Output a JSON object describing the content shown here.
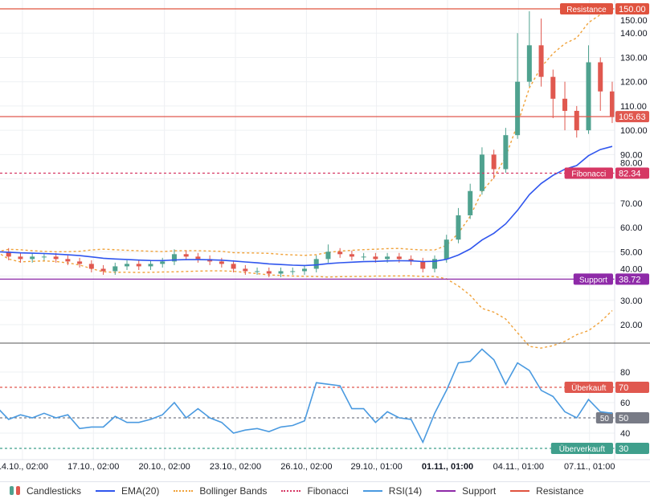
{
  "chart_data": [
    {
      "type": "candlestick",
      "title": "",
      "candles_ohlc": [
        [
          51,
          52,
          49,
          50
        ],
        [
          50,
          51.5,
          46.5,
          48
        ],
        [
          48,
          49.5,
          45.5,
          47
        ],
        [
          47,
          49.5,
          45.5,
          48
        ],
        [
          48,
          49.5,
          46.5,
          48
        ],
        [
          48,
          49.5,
          45.5,
          47
        ],
        [
          47,
          48.5,
          44.5,
          46
        ],
        [
          46,
          47.5,
          43.5,
          45
        ],
        [
          45,
          46.5,
          41.5,
          43
        ],
        [
          43,
          44.5,
          40.5,
          42
        ],
        [
          42,
          45.5,
          40.5,
          44
        ],
        [
          44,
          46.5,
          42.5,
          45
        ],
        [
          45,
          46.5,
          42.5,
          44
        ],
        [
          44,
          46.5,
          42.5,
          45
        ],
        [
          45,
          47.5,
          43.5,
          46
        ],
        [
          46,
          51,
          44.5,
          49
        ],
        [
          49,
          50.5,
          46.5,
          48
        ],
        [
          48,
          49.5,
          45.5,
          47
        ],
        [
          47,
          48.5,
          44.5,
          46
        ],
        [
          46,
          47.5,
          43.5,
          45
        ],
        [
          45,
          46.5,
          41.5,
          43
        ],
        [
          43,
          44.5,
          40.5,
          42
        ],
        [
          42,
          43.5,
          40.5,
          42
        ],
        [
          42,
          43.5,
          39.5,
          41
        ],
        [
          41,
          43.5,
          39.5,
          42
        ],
        [
          42,
          43.5,
          40.5,
          42
        ],
        [
          42,
          44.5,
          40.5,
          43
        ],
        [
          43,
          48.5,
          41.5,
          47
        ],
        [
          47,
          53,
          45.5,
          50
        ],
        [
          50,
          51.5,
          47.5,
          49
        ],
        [
          49,
          50.5,
          46.5,
          48
        ],
        [
          48,
          49.5,
          46.5,
          48
        ],
        [
          48,
          49.5,
          45.5,
          47
        ],
        [
          47,
          49.5,
          45.5,
          48
        ],
        [
          48,
          49.5,
          45.5,
          47
        ],
        [
          47,
          48.5,
          44.5,
          46
        ],
        [
          46,
          47.5,
          41.5,
          43
        ],
        [
          43,
          48.5,
          41.5,
          47
        ],
        [
          47,
          57,
          45.5,
          55
        ],
        [
          55,
          68,
          53.5,
          65
        ],
        [
          65,
          78,
          63.5,
          75
        ],
        [
          75,
          93,
          73.5,
          90
        ],
        [
          90,
          92,
          80,
          84
        ],
        [
          84,
          101,
          82.5,
          98
        ],
        [
          98,
          140,
          96.5,
          120
        ],
        [
          120,
          149,
          118,
          135
        ],
        [
          135,
          146,
          118,
          122
        ],
        [
          122,
          125,
          105,
          113
        ],
        [
          113,
          120,
          100,
          108
        ],
        [
          108,
          110,
          97,
          100
        ],
        [
          100,
          135,
          98.5,
          128
        ],
        [
          128,
          130,
          108,
          116
        ],
        [
          116,
          120,
          103,
          105.63
        ]
      ],
      "y_ticks": [
        "150.00",
        "140.00",
        "130.00",
        "120.00",
        "110.00",
        "100.00",
        "90.00",
        "80.00",
        "70.00",
        "60.00",
        "50.00",
        "40.00",
        "30.00",
        "20.00"
      ],
      "ylim": [
        12,
        153
      ],
      "last_price": "105.63",
      "ema_period": 20,
      "bollinger_period": 20,
      "levels": [
        {
          "name": "Resistance",
          "value": "150.00",
          "color": "#e0533f",
          "style": "solid"
        },
        {
          "name": "Fibonacci",
          "value": "82.34",
          "color": "#d63864",
          "style": "dashed"
        },
        {
          "name": "Support",
          "value": "38.72",
          "color": "#8e2aa8",
          "style": "solid"
        }
      ],
      "colors": {
        "up": "#4fa28f",
        "down": "#e0584f",
        "ema": "#3056ee",
        "bollinger": "#f0a23a"
      },
      "grid": true
    },
    {
      "type": "line",
      "title": "",
      "series": [
        {
          "name": "RSI(14)",
          "values": [
            57,
            49,
            52,
            50,
            53,
            50,
            52,
            43,
            44,
            44,
            51,
            47,
            47,
            49,
            52,
            60,
            50,
            56,
            50,
            47,
            40,
            42,
            43,
            41,
            44,
            45,
            48,
            73,
            72,
            71,
            56,
            56,
            47,
            54,
            50,
            49,
            34,
            53,
            68,
            86,
            87,
            95,
            88,
            72,
            86,
            81,
            68,
            64,
            54,
            50,
            62,
            54,
            53
          ]
        }
      ],
      "y_ticks": [
        "80",
        "70",
        "60",
        "50",
        "40",
        "30"
      ],
      "ylim": [
        25,
        99
      ],
      "levels": [
        {
          "name": "Überkauft",
          "value": "70",
          "color": "#e0584f"
        },
        {
          "name": "50",
          "value": "50",
          "color": "#787b86"
        },
        {
          "name": "Überverkauft",
          "value": "30",
          "color": "#3f9f8c"
        }
      ],
      "color": "#4a9ae0",
      "grid": true
    }
  ],
  "x_axis": {
    "ticks": [
      {
        "label": "14.10., 02:00",
        "pos": 1.083,
        "bold": false
      },
      {
        "label": "17.10., 02:00",
        "pos": 4.083,
        "bold": false
      },
      {
        "label": "20.10., 02:00",
        "pos": 7.083,
        "bold": false
      },
      {
        "label": "23.10., 02:00",
        "pos": 10.083,
        "bold": false
      },
      {
        "label": "26.10., 02:00",
        "pos": 13.083,
        "bold": false
      },
      {
        "label": "29.10., 01:00",
        "pos": 16.042,
        "bold": false
      },
      {
        "label": "01.11., 01:00",
        "pos": 19.042,
        "bold": true
      },
      {
        "label": "04.11., 01:00",
        "pos": 22.042,
        "bold": false
      },
      {
        "label": "07.11., 01:00",
        "pos": 25.042,
        "bold": false
      }
    ]
  },
  "legend": [
    {
      "label": "Candlesticks"
    },
    {
      "label": "EMA(20)",
      "color": "#3056ee",
      "style": "solid"
    },
    {
      "label": "Bollinger Bands",
      "color": "#f0a23a",
      "style": "dotted"
    },
    {
      "label": "Fibonacci",
      "color": "#d63864",
      "style": "dotted"
    },
    {
      "label": "RSI(14)",
      "color": "#4a9ae0",
      "style": "solid"
    },
    {
      "label": "Support",
      "color": "#8e2aa8",
      "style": "solid"
    },
    {
      "label": "Resistance",
      "color": "#e0533f",
      "style": "solid"
    }
  ]
}
